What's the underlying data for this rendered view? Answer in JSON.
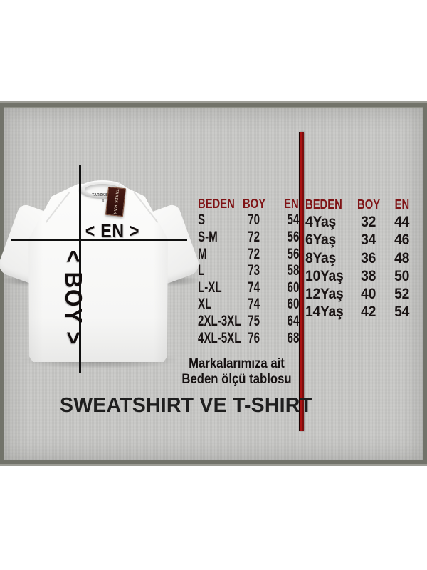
{
  "title": "SWEATSHIRT VE T-SHIRT",
  "measure": {
    "width_arrow_label": "< EN >",
    "length_arrow_label": "< BOY >"
  },
  "shirt": {
    "neck_brand": "TARZKIRAK",
    "neck_size": "S",
    "tag_brand": "TARZKIRAK"
  },
  "size_table_adult": {
    "headers": [
      "BEDEN",
      "BOY",
      "EN"
    ],
    "rows": [
      [
        "S",
        "70",
        "54"
      ],
      [
        "S-M",
        "72",
        "56"
      ],
      [
        "M",
        "72",
        "56"
      ],
      [
        "L",
        "73",
        "58"
      ],
      [
        "L-XL",
        "74",
        "60"
      ],
      [
        "XL",
        "74",
        "60"
      ],
      [
        "2XL-3XL",
        "75",
        "64"
      ],
      [
        "4XL-5XL",
        "76",
        "68"
      ]
    ]
  },
  "size_table_kids": {
    "headers": [
      "BEDEN",
      "BOY",
      "EN"
    ],
    "rows": [
      [
        "4Yaş",
        "32",
        "44"
      ],
      [
        "6Yaş",
        "34",
        "46"
      ],
      [
        "8Yaş",
        "36",
        "48"
      ],
      [
        "10Yaş",
        "38",
        "50"
      ],
      [
        "12Yaş",
        "40",
        "52"
      ],
      [
        "14Yaş",
        "42",
        "54"
      ]
    ]
  },
  "note": {
    "line1": "Markalarımıza ait",
    "line2": "Beden ölçü tablosu"
  },
  "colors": {
    "header_red": "#7f1315",
    "divider_red": "#ab1212",
    "panel_gray": "#c8c8c6",
    "ink_black": "#1a1414"
  }
}
